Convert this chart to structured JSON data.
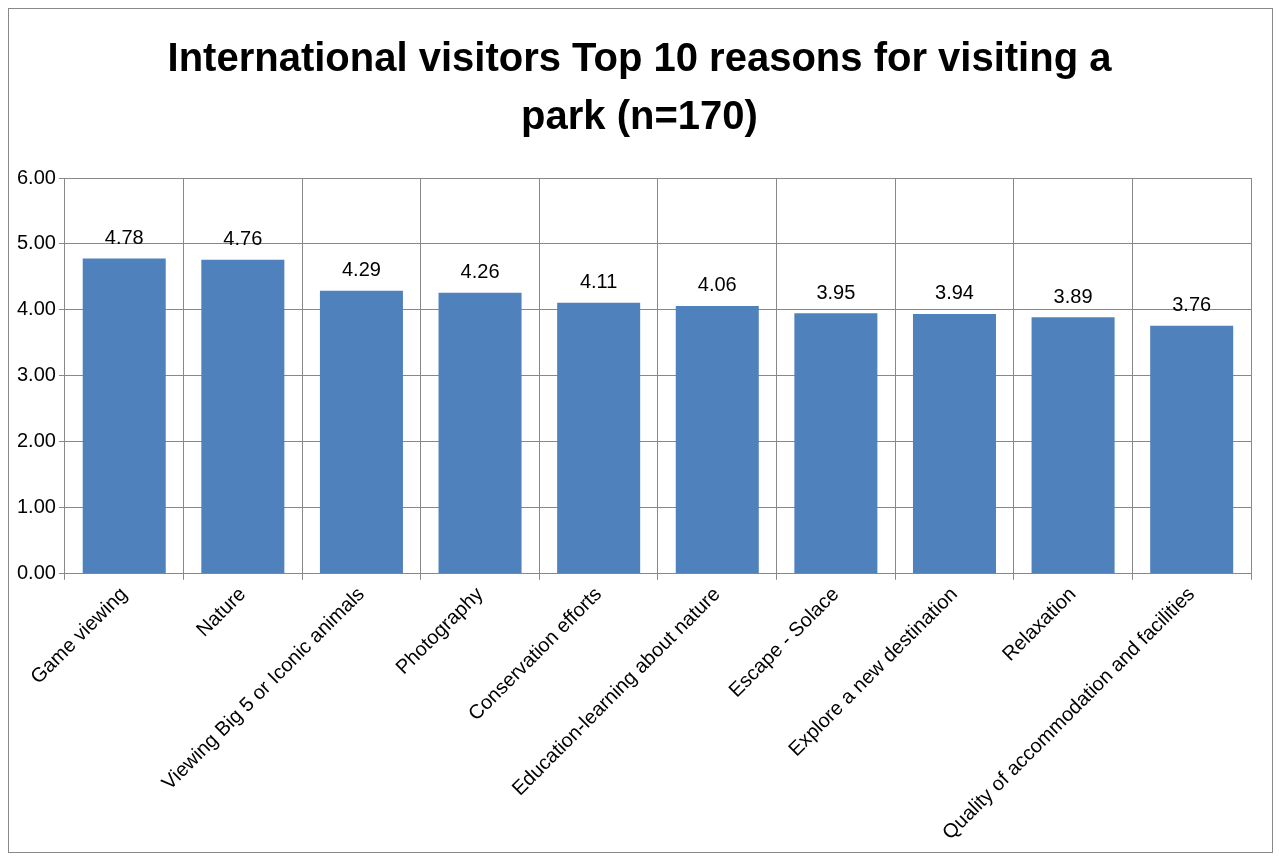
{
  "chart_data": {
    "type": "bar",
    "title": "International visitors Top 10 reasons for visiting a park (n=170)",
    "categories": [
      "Game viewing",
      "Nature",
      "Viewing Big 5 or Iconic animals",
      "Photography",
      "Conservation efforts",
      "Education-learning about nature",
      "Escape - Solace",
      "Explore a new destination",
      "Relaxation",
      "Quality of accommodation and facilities"
    ],
    "values": [
      4.78,
      4.76,
      4.29,
      4.26,
      4.11,
      4.06,
      3.95,
      3.94,
      3.89,
      3.76
    ],
    "color": "#4f81bd",
    "ylim": [
      0,
      6
    ],
    "yticks": [
      {
        "value": 0,
        "label": "0.00"
      },
      {
        "value": 1,
        "label": "1.00"
      },
      {
        "value": 2,
        "label": "2.00"
      },
      {
        "value": 3,
        "label": "3.00"
      },
      {
        "value": 4,
        "label": "4.00"
      },
      {
        "value": 5,
        "label": "5.00"
      },
      {
        "value": 6,
        "label": "6.00"
      }
    ],
    "grid": true,
    "data_labels": true,
    "legend": false
  }
}
